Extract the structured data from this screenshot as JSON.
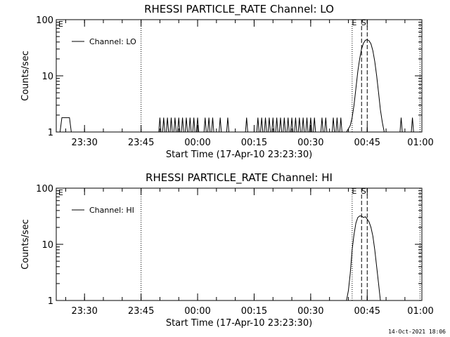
{
  "footer": {
    "timestamp": "14-Oct-2021 18:06"
  },
  "chart_data": [
    {
      "type": "line",
      "title": "RHESSI PARTICLE_RATE Channel: LO",
      "xlabel": "Start Time (17-Apr-10 23:23:30)",
      "ylabel": "Counts/sec",
      "y_scale": "log",
      "ylim": [
        1,
        100
      ],
      "xlim_minutes": [
        -1,
        96
      ],
      "x_ticks": [
        {
          "label": "23:30",
          "min": 6.5
        },
        {
          "label": "23:45",
          "min": 21.5
        },
        {
          "label": "00:00",
          "min": 36.5
        },
        {
          "label": "00:15",
          "min": 51.5
        },
        {
          "label": "00:30",
          "min": 66.5
        },
        {
          "label": "00:45",
          "min": 81.5
        },
        {
          "label": "01:00",
          "min": 96.5
        }
      ],
      "y_ticks": [
        {
          "label": "1",
          "v": 1
        },
        {
          "label": "10",
          "v": 10
        },
        {
          "label": "100",
          "v": 100
        }
      ],
      "legend": {
        "position": "top-left"
      },
      "series": [
        {
          "name": "Channel: LO",
          "x": [
            0,
            0.5,
            1,
            1.5,
            2,
            2.5,
            3,
            3.5,
            4,
            6,
            8,
            10,
            12,
            14,
            16,
            18,
            20,
            21.5,
            22,
            22.5,
            23,
            23.5,
            24,
            24.5,
            25,
            26,
            27,
            28,
            30,
            32,
            34,
            36,
            38,
            40,
            42,
            44,
            46,
            48,
            50,
            52,
            54,
            56,
            58,
            60,
            62,
            64,
            66,
            68,
            70,
            72,
            74,
            76,
            77,
            77.5,
            78,
            78.5,
            79,
            79.5,
            80,
            80.5,
            81,
            81.5,
            82,
            82.5,
            83,
            83.5,
            84,
            84.5,
            85,
            85.5,
            86,
            86.5,
            87,
            88,
            90,
            92,
            94,
            95
          ],
          "values": [
            1,
            1.8,
            1.8,
            1.8,
            1.8,
            1.8,
            1,
            1,
            1,
            1,
            1,
            1,
            1,
            1,
            1,
            1,
            1,
            1,
            1,
            1,
            1,
            1,
            1,
            1,
            1,
            1,
            1,
            1,
            1,
            1,
            1,
            1,
            1,
            1,
            1,
            1,
            1,
            1,
            1,
            1,
            1,
            1,
            1,
            1,
            1,
            1,
            1,
            1,
            1,
            1,
            1,
            1,
            1.3,
            1.8,
            3,
            6,
            12,
            20,
            30,
            38,
            43,
            44,
            42,
            37,
            28,
            18,
            10,
            5,
            2.5,
            1.5,
            1,
            1,
            1,
            1,
            1,
            1,
            1,
            1
          ]
        }
      ],
      "markers": [
        {
          "label": "E",
          "min": 77.5,
          "style": "dotted"
        },
        {
          "label": "S",
          "min": 80.0,
          "style": "dashed"
        },
        {
          "label": "",
          "min": 81.5,
          "style": "dashed"
        }
      ],
      "extra_dotted_min": [
        21.5,
        95.5
      ],
      "y_corner_label": "E"
    },
    {
      "type": "line",
      "title": "RHESSI PARTICLE_RATE Channel: HI",
      "xlabel": "Start Time (17-Apr-10 23:23:30)",
      "ylabel": "Counts/sec",
      "y_scale": "log",
      "ylim": [
        1,
        100
      ],
      "xlim_minutes": [
        -1,
        96
      ],
      "x_ticks": [
        {
          "label": "23:30",
          "min": 6.5
        },
        {
          "label": "23:45",
          "min": 21.5
        },
        {
          "label": "00:00",
          "min": 36.5
        },
        {
          "label": "00:15",
          "min": 51.5
        },
        {
          "label": "00:30",
          "min": 66.5
        },
        {
          "label": "00:45",
          "min": 81.5
        },
        {
          "label": "01:00",
          "min": 96.5
        }
      ],
      "y_ticks": [
        {
          "label": "1",
          "v": 1
        },
        {
          "label": "10",
          "v": 10
        },
        {
          "label": "100",
          "v": 100
        }
      ],
      "legend": {
        "position": "top-left"
      },
      "series": [
        {
          "name": "Channel: HI",
          "x": [
            75,
            76,
            76.5,
            77,
            77.5,
            78,
            78.5,
            79,
            79.5,
            80,
            80.5,
            81,
            81.5,
            82,
            82.5,
            83,
            83.5,
            84,
            84.5,
            85,
            86
          ],
          "values": [
            1,
            1,
            1.5,
            3,
            8,
            15,
            24,
            30,
            32,
            32,
            30,
            31,
            28,
            25,
            20,
            14,
            8,
            4,
            2,
            1,
            1
          ]
        }
      ],
      "markers": [
        {
          "label": "E",
          "min": 77.5,
          "style": "dotted"
        },
        {
          "label": "S",
          "min": 80.0,
          "style": "dashed"
        },
        {
          "label": "",
          "min": 81.5,
          "style": "dashed"
        }
      ],
      "extra_dotted_min": [
        21.5,
        95.5
      ],
      "y_corner_label": "E"
    }
  ]
}
